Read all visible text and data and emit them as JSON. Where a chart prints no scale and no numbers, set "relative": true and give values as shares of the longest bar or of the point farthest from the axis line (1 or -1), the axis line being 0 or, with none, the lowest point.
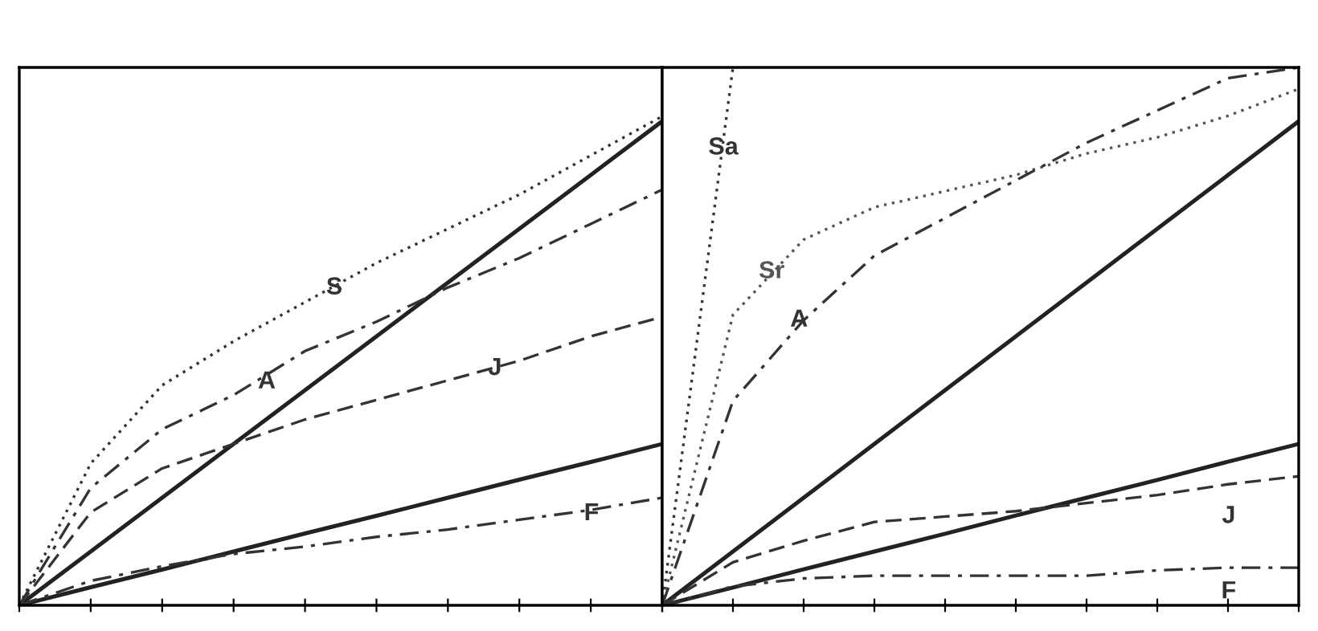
{
  "chart_data": [
    {
      "type": "line",
      "relative": true,
      "categories": [
        null,
        null,
        null,
        null,
        null,
        null,
        null,
        null,
        null,
        null
      ],
      "legend": false,
      "grid": false,
      "series": [
        {
          "color": "#222222",
          "line_style": "solid",
          "values": [
            0,
            0.11,
            0.22,
            0.33,
            0.44,
            0.55,
            0.66,
            0.77,
            0.88,
            0.99
          ]
        },
        {
          "color": "#222222",
          "line_style": "solid",
          "values": [
            0,
            0.037,
            0.073,
            0.11,
            0.147,
            0.183,
            0.22,
            0.257,
            0.293,
            0.33
          ]
        },
        {
          "name": "S",
          "color": "#333333",
          "line_style": "dotted",
          "values": [
            0,
            0.29,
            0.45,
            0.54,
            0.62,
            0.7,
            0.77,
            0.84,
            0.92,
            1.0
          ]
        },
        {
          "name": "A",
          "color": "#333333",
          "line_style": "dashdot",
          "values": [
            0,
            0.24,
            0.36,
            0.43,
            0.52,
            0.58,
            0.65,
            0.71,
            0.78,
            0.85
          ]
        },
        {
          "name": "J",
          "color": "#333333",
          "line_style": "dashed",
          "values": [
            0,
            0.19,
            0.28,
            0.33,
            0.38,
            0.42,
            0.46,
            0.5,
            0.55,
            0.59
          ]
        },
        {
          "name": "F",
          "color": "#333333",
          "line_style": "dashdot",
          "values": [
            0,
            0.05,
            0.08,
            0.105,
            0.12,
            0.14,
            0.155,
            0.175,
            0.195,
            0.22
          ]
        }
      ]
    },
    {
      "type": "line",
      "relative": true,
      "categories": [
        null,
        null,
        null,
        null,
        null,
        null,
        null,
        null,
        null,
        null
      ],
      "legend": false,
      "grid": false,
      "series": [
        {
          "color": "#222222",
          "line_style": "solid",
          "values": [
            0,
            0.1,
            0.2,
            0.3,
            0.4,
            0.5,
            0.6,
            0.7,
            0.8,
            0.9
          ]
        },
        {
          "color": "#222222",
          "line_style": "solid",
          "values": [
            0,
            0.033,
            0.067,
            0.1,
            0.133,
            0.167,
            0.2,
            0.233,
            0.267,
            0.3
          ]
        },
        {
          "name": "Sa",
          "color": "#333333",
          "line_style": "dotted",
          "values": [
            0,
            1.0,
            null,
            null,
            null,
            null,
            null,
            null,
            null,
            null
          ]
        },
        {
          "name": "Sr",
          "color": "#555555",
          "line_style": "dotted",
          "values": [
            0,
            0.54,
            0.68,
            0.74,
            0.77,
            0.8,
            0.84,
            0.87,
            0.91,
            0.96
          ]
        },
        {
          "name": "A",
          "color": "#333333",
          "line_style": "dashdot",
          "values": [
            0,
            0.38,
            0.53,
            0.65,
            0.72,
            0.79,
            0.86,
            0.92,
            0.98,
            1.0
          ]
        },
        {
          "name": "J",
          "color": "#333333",
          "line_style": "dashed",
          "values": [
            0,
            0.08,
            0.12,
            0.155,
            0.165,
            0.175,
            0.19,
            0.205,
            0.225,
            0.24
          ]
        },
        {
          "name": "F",
          "color": "#333333",
          "line_style": "dashdot",
          "values": [
            0,
            0.035,
            0.05,
            0.055,
            0.055,
            0.055,
            0.055,
            0.065,
            0.07,
            0.07
          ]
        }
      ]
    }
  ]
}
